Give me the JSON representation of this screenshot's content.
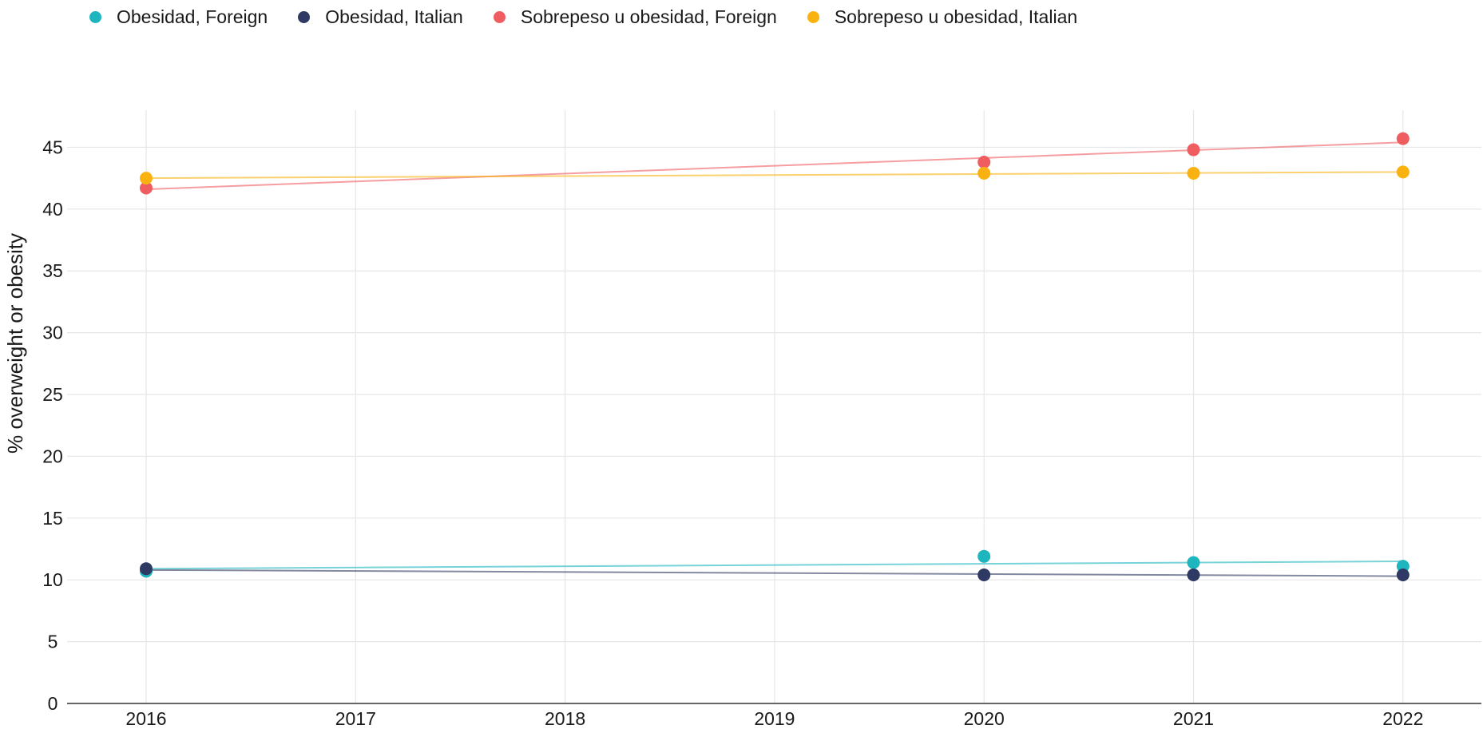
{
  "chart_data": {
    "type": "line",
    "title": "",
    "xlabel": "",
    "ylabel": "% overweight or obesity",
    "x": [
      "2016",
      "2017",
      "2018",
      "2019",
      "2020",
      "2021",
      "2022"
    ],
    "ylim": [
      0,
      48
    ],
    "yticks": [
      0,
      5,
      10,
      15,
      20,
      25,
      30,
      35,
      40,
      45
    ],
    "grid": true,
    "legend_position": "top-left",
    "series": [
      {
        "name": "Obesidad, Foreign",
        "color": "#1db5be",
        "points": [
          {
            "x": "2016",
            "y": 10.7
          },
          {
            "x": "2020",
            "y": 11.9
          },
          {
            "x": "2021",
            "y": 11.4
          },
          {
            "x": "2022",
            "y": 11.1
          }
        ],
        "trend": [
          {
            "x": "2016",
            "y": 10.9
          },
          {
            "x": "2022",
            "y": 11.5
          }
        ]
      },
      {
        "name": "Obesidad, Italian",
        "color": "#2e3a63",
        "points": [
          {
            "x": "2016",
            "y": 10.9
          },
          {
            "x": "2020",
            "y": 10.4
          },
          {
            "x": "2021",
            "y": 10.4
          },
          {
            "x": "2022",
            "y": 10.4
          }
        ],
        "trend": [
          {
            "x": "2016",
            "y": 10.8
          },
          {
            "x": "2022",
            "y": 10.3
          }
        ]
      },
      {
        "name": "Sobrepeso u obesidad, Foreign",
        "color": "#ef5d60",
        "points": [
          {
            "x": "2016",
            "y": 41.7
          },
          {
            "x": "2020",
            "y": 43.8
          },
          {
            "x": "2021",
            "y": 44.8
          },
          {
            "x": "2022",
            "y": 45.7
          }
        ],
        "trend": [
          {
            "x": "2016",
            "y": 41.6
          },
          {
            "x": "2022",
            "y": 45.4
          }
        ]
      },
      {
        "name": "Sobrepeso u obesidad, Italian",
        "color": "#f9b20f",
        "points": [
          {
            "x": "2016",
            "y": 42.5
          },
          {
            "x": "2020",
            "y": 42.9
          },
          {
            "x": "2021",
            "y": 42.9
          },
          {
            "x": "2022",
            "y": 43.0
          }
        ],
        "trend": [
          {
            "x": "2016",
            "y": 42.5
          },
          {
            "x": "2022",
            "y": 43.0
          }
        ]
      }
    ]
  }
}
